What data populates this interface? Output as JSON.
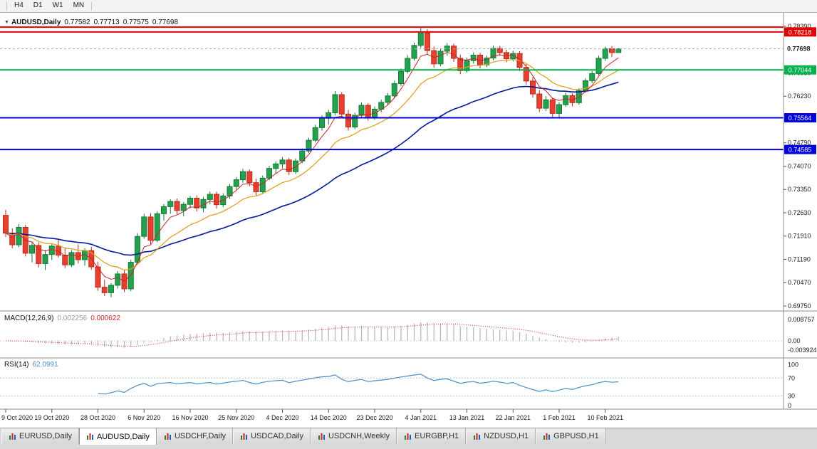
{
  "toolbar": {
    "timeframes": [
      "H4",
      "D1",
      "W1",
      "MN"
    ]
  },
  "chart": {
    "collapse_arrow": "▼",
    "symbol": "AUDUSD,Daily",
    "open": "0.77582",
    "high": "0.77713",
    "low": "0.77575",
    "close": "0.77698"
  },
  "indicators": {
    "macd": {
      "label": "MACD(12,26,9)",
      "value_main": "0.002256",
      "value_signal": "0.000622",
      "axis": [
        "0.008757",
        "0.00",
        "-0.003924"
      ]
    },
    "rsi": {
      "label": "RSI(14)",
      "value": "62.0991",
      "axis": [
        "100",
        "70",
        "30",
        "0"
      ]
    }
  },
  "price_axis": {
    "ticks": [
      "0.78390",
      "0.76950",
      "0.76230",
      "0.74790",
      "0.74070",
      "0.73350",
      "0.72630",
      "0.71910",
      "0.71190",
      "0.70470",
      "0.69750"
    ],
    "current": {
      "label": "0.77698",
      "price": 0.77698
    },
    "levels": [
      {
        "price": 0.78365,
        "label": null,
        "color": "#e00000"
      },
      {
        "price": 0.78218,
        "label": "0.78218",
        "color": "#e00000"
      },
      {
        "price": 0.77044,
        "label": "0.77044",
        "color": "#00b34d"
      },
      {
        "price": 0.75564,
        "label": "0.75564",
        "color": "#0000dd"
      },
      {
        "price": 0.74585,
        "label": "0.74585",
        "color": "#0000dd"
      }
    ]
  },
  "time_axis": {
    "labels": [
      {
        "label": "9 Oct 2020",
        "i": 0
      },
      {
        "label": "19 Oct 2020",
        "i": 7
      },
      {
        "label": "28 Oct 2020",
        "i": 14
      },
      {
        "label": "6 Nov 2020",
        "i": 21
      },
      {
        "label": "16 Nov 2020",
        "i": 28
      },
      {
        "label": "25 Nov 2020",
        "i": 35
      },
      {
        "label": "4 Dec 2020",
        "i": 42
      },
      {
        "label": "14 Dec 2020",
        "i": 49
      },
      {
        "label": "23 Dec 2020",
        "i": 56
      },
      {
        "label": "4 Jan 2021",
        "i": 63
      },
      {
        "label": "13 Jan 2021",
        "i": 70
      },
      {
        "label": "22 Jan 2021",
        "i": 77
      },
      {
        "label": "1 Feb 2021",
        "i": 84
      },
      {
        "label": "10 Feb 2021",
        "i": 91
      }
    ]
  },
  "tabs": [
    {
      "label": "EURUSD,Daily",
      "active": false
    },
    {
      "label": "AUDUSD,Daily",
      "active": true
    },
    {
      "label": "USDCHF,Daily",
      "active": false
    },
    {
      "label": "USDCAD,Daily",
      "active": false
    },
    {
      "label": "USDCNH,Weekly",
      "active": false
    },
    {
      "label": "EURGBP,H1",
      "active": false
    },
    {
      "label": "NZDUSD,H1",
      "active": false
    },
    {
      "label": "GBPUSD,H1",
      "active": false
    }
  ],
  "chart_data": {
    "type": "candlestick",
    "title": "AUDUSD,Daily",
    "ylim": [
      0.6975,
      0.7839
    ],
    "colors": {
      "up": "#23a14d",
      "up_border": "#157a36",
      "down": "#e8402f",
      "down_border": "#b52c1e",
      "ma_fast": "#cc2222",
      "ma_mid": "#e0a224",
      "ma_slow": "#001a9c",
      "macd_hist": "#b4b4b4",
      "macd_signal": "#cc2222",
      "rsi": "#4a8fc7"
    },
    "moving_averages": [
      {
        "name": "fast",
        "period": 5
      },
      {
        "name": "medium",
        "period": 13
      },
      {
        "name": "slow",
        "period": 34
      }
    ],
    "candles": [
      [
        0.7255,
        0.7272,
        0.7188,
        0.72
      ],
      [
        0.72,
        0.7215,
        0.7153,
        0.7164
      ],
      [
        0.7164,
        0.7228,
        0.7156,
        0.7218
      ],
      [
        0.7218,
        0.7225,
        0.7128,
        0.7138
      ],
      [
        0.7138,
        0.7174,
        0.711,
        0.7162
      ],
      [
        0.7162,
        0.7171,
        0.7094,
        0.7106
      ],
      [
        0.7106,
        0.7148,
        0.7086,
        0.7134
      ],
      [
        0.7134,
        0.7166,
        0.7117,
        0.716
      ],
      [
        0.716,
        0.7181,
        0.7124,
        0.7132
      ],
      [
        0.7132,
        0.7156,
        0.7092,
        0.7102
      ],
      [
        0.7102,
        0.7148,
        0.7095,
        0.714
      ],
      [
        0.714,
        0.7165,
        0.7106,
        0.7118
      ],
      [
        0.7118,
        0.7154,
        0.71,
        0.7146
      ],
      [
        0.7146,
        0.7158,
        0.7087,
        0.7096
      ],
      [
        0.7096,
        0.7112,
        0.7022,
        0.7033
      ],
      [
        0.7033,
        0.7056,
        0.7006,
        0.7016
      ],
      [
        0.7016,
        0.7046,
        0.7002,
        0.7039
      ],
      [
        0.7039,
        0.7083,
        0.7029,
        0.7074
      ],
      [
        0.7074,
        0.7086,
        0.7018,
        0.7028
      ],
      [
        0.7028,
        0.7118,
        0.7021,
        0.711
      ],
      [
        0.711,
        0.72,
        0.7105,
        0.719
      ],
      [
        0.719,
        0.726,
        0.7183,
        0.725
      ],
      [
        0.725,
        0.7262,
        0.7166,
        0.7178
      ],
      [
        0.7178,
        0.7268,
        0.7172,
        0.726
      ],
      [
        0.726,
        0.729,
        0.7238,
        0.7282
      ],
      [
        0.7282,
        0.7305,
        0.726,
        0.7298
      ],
      [
        0.7298,
        0.7307,
        0.7258,
        0.727
      ],
      [
        0.727,
        0.7296,
        0.7252,
        0.7289
      ],
      [
        0.7289,
        0.7315,
        0.7276,
        0.7308
      ],
      [
        0.7308,
        0.7317,
        0.7267,
        0.7278
      ],
      [
        0.7278,
        0.7312,
        0.7264,
        0.7304
      ],
      [
        0.7304,
        0.7329,
        0.7289,
        0.732
      ],
      [
        0.732,
        0.7328,
        0.7276,
        0.7288
      ],
      [
        0.7288,
        0.7323,
        0.728,
        0.7315
      ],
      [
        0.7315,
        0.7352,
        0.7306,
        0.7344
      ],
      [
        0.7344,
        0.7373,
        0.7335,
        0.7365
      ],
      [
        0.7365,
        0.7399,
        0.7356,
        0.739
      ],
      [
        0.739,
        0.7397,
        0.7345,
        0.7356
      ],
      [
        0.7356,
        0.7368,
        0.7316,
        0.7328
      ],
      [
        0.7328,
        0.7378,
        0.7322,
        0.737
      ],
      [
        0.737,
        0.7408,
        0.7364,
        0.74
      ],
      [
        0.74,
        0.7422,
        0.7384,
        0.7414
      ],
      [
        0.7414,
        0.7435,
        0.74,
        0.7426
      ],
      [
        0.7426,
        0.7433,
        0.7379,
        0.739
      ],
      [
        0.739,
        0.7431,
        0.7383,
        0.7423
      ],
      [
        0.7423,
        0.7462,
        0.7416,
        0.7454
      ],
      [
        0.7454,
        0.7495,
        0.7448,
        0.7487
      ],
      [
        0.7487,
        0.7535,
        0.748,
        0.7526
      ],
      [
        0.7526,
        0.7564,
        0.7517,
        0.7555
      ],
      [
        0.7555,
        0.7581,
        0.7535,
        0.7572
      ],
      [
        0.7572,
        0.7639,
        0.7564,
        0.7628
      ],
      [
        0.7628,
        0.7636,
        0.7556,
        0.7568
      ],
      [
        0.7568,
        0.7581,
        0.7517,
        0.7528
      ],
      [
        0.7528,
        0.7572,
        0.7521,
        0.7564
      ],
      [
        0.7564,
        0.7604,
        0.7556,
        0.7595
      ],
      [
        0.7595,
        0.7602,
        0.7548,
        0.7559
      ],
      [
        0.7559,
        0.7591,
        0.755,
        0.7583
      ],
      [
        0.7583,
        0.7613,
        0.7574,
        0.7604
      ],
      [
        0.7604,
        0.7633,
        0.7595,
        0.7624
      ],
      [
        0.7624,
        0.7671,
        0.7617,
        0.7662
      ],
      [
        0.7662,
        0.7709,
        0.7655,
        0.77
      ],
      [
        0.77,
        0.775,
        0.7693,
        0.774
      ],
      [
        0.774,
        0.7789,
        0.7733,
        0.778
      ],
      [
        0.778,
        0.7838,
        0.7772,
        0.7818
      ],
      [
        0.7818,
        0.783,
        0.7752,
        0.7764
      ],
      [
        0.7764,
        0.7777,
        0.7711,
        0.7723
      ],
      [
        0.7723,
        0.7771,
        0.7716,
        0.7762
      ],
      [
        0.7762,
        0.7787,
        0.7748,
        0.7778
      ],
      [
        0.7778,
        0.7785,
        0.7729,
        0.774
      ],
      [
        0.774,
        0.7751,
        0.7691,
        0.7702
      ],
      [
        0.7702,
        0.7742,
        0.7696,
        0.7733
      ],
      [
        0.7733,
        0.7759,
        0.7724,
        0.775
      ],
      [
        0.775,
        0.7757,
        0.7709,
        0.772
      ],
      [
        0.772,
        0.7749,
        0.7713,
        0.7741
      ],
      [
        0.7741,
        0.778,
        0.7734,
        0.7771
      ],
      [
        0.7771,
        0.7779,
        0.7748,
        0.7758
      ],
      [
        0.7758,
        0.7767,
        0.7728,
        0.7739
      ],
      [
        0.7739,
        0.7764,
        0.773,
        0.7755
      ],
      [
        0.7755,
        0.7762,
        0.7701,
        0.7712
      ],
      [
        0.7712,
        0.7723,
        0.7659,
        0.767
      ],
      [
        0.767,
        0.7683,
        0.7619,
        0.763
      ],
      [
        0.763,
        0.7642,
        0.7574,
        0.7586
      ],
      [
        0.7586,
        0.7623,
        0.7577,
        0.7612
      ],
      [
        0.7612,
        0.7619,
        0.7559,
        0.757
      ],
      [
        0.757,
        0.7605,
        0.7556,
        0.7597
      ],
      [
        0.7597,
        0.7634,
        0.759,
        0.7625
      ],
      [
        0.7625,
        0.7632,
        0.7592,
        0.7603
      ],
      [
        0.7603,
        0.7648,
        0.7597,
        0.764
      ],
      [
        0.764,
        0.7679,
        0.7634,
        0.7671
      ],
      [
        0.7671,
        0.7701,
        0.7663,
        0.7693
      ],
      [
        0.7693,
        0.7748,
        0.7687,
        0.774
      ],
      [
        0.774,
        0.7776,
        0.7732,
        0.777
      ],
      [
        0.777,
        0.7778,
        0.7744,
        0.7758
      ],
      [
        0.7758,
        0.77713,
        0.77575,
        0.77698
      ]
    ]
  }
}
